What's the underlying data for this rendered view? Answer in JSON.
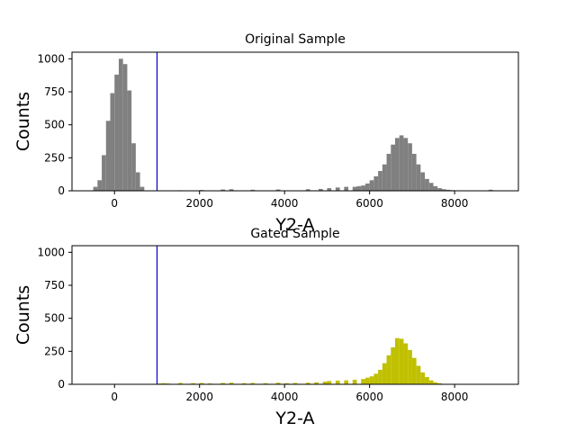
{
  "chart_data": [
    {
      "type": "histogram",
      "title": "Original Sample",
      "xlabel": "Y2-A",
      "ylabel": "Counts",
      "xlim": [
        -1000,
        9500
      ],
      "ylim": [
        0,
        1050
      ],
      "xticks": [
        0,
        2000,
        4000,
        6000,
        8000
      ],
      "yticks": [
        0,
        250,
        500,
        750,
        1000
      ],
      "bar_color": "#808080",
      "gate_line": {
        "x": 1000,
        "color": "#0000cc"
      },
      "bin_width": 100,
      "bins": [
        [
          -500,
          30
        ],
        [
          -400,
          80
        ],
        [
          -300,
          270
        ],
        [
          -200,
          530
        ],
        [
          -100,
          740
        ],
        [
          0,
          880
        ],
        [
          100,
          1000
        ],
        [
          200,
          960
        ],
        [
          300,
          760
        ],
        [
          400,
          360
        ],
        [
          500,
          140
        ],
        [
          600,
          30
        ],
        [
          1000,
          3
        ],
        [
          1500,
          4
        ],
        [
          2000,
          6
        ],
        [
          2500,
          10
        ],
        [
          2700,
          12
        ],
        [
          3200,
          8
        ],
        [
          3800,
          10
        ],
        [
          4500,
          12
        ],
        [
          4800,
          14
        ],
        [
          5000,
          20
        ],
        [
          5200,
          25
        ],
        [
          5400,
          30
        ],
        [
          5600,
          30
        ],
        [
          5700,
          35
        ],
        [
          5800,
          40
        ],
        [
          5900,
          55
        ],
        [
          6000,
          80
        ],
        [
          6100,
          110
        ],
        [
          6200,
          150
        ],
        [
          6300,
          200
        ],
        [
          6400,
          280
        ],
        [
          6500,
          350
        ],
        [
          6600,
          400
        ],
        [
          6700,
          420
        ],
        [
          6800,
          400
        ],
        [
          6900,
          360
        ],
        [
          7000,
          280
        ],
        [
          7100,
          200
        ],
        [
          7200,
          140
        ],
        [
          7300,
          90
        ],
        [
          7400,
          60
        ],
        [
          7500,
          35
        ],
        [
          7600,
          20
        ],
        [
          7700,
          12
        ],
        [
          7800,
          8
        ],
        [
          7900,
          5
        ],
        [
          8000,
          3
        ],
        [
          8800,
          8
        ]
      ]
    },
    {
      "type": "histogram",
      "title": "Gated Sample",
      "xlabel": "Y2-A",
      "ylabel": "Counts",
      "xlim": [
        -1000,
        9500
      ],
      "ylim": [
        0,
        1050
      ],
      "xticks": [
        0,
        2000,
        4000,
        6000,
        8000
      ],
      "yticks": [
        0,
        250,
        500,
        750,
        1000
      ],
      "bar_color": "#c0c000",
      "gate_line": {
        "x": 1000,
        "color": "#0000cc"
      },
      "bin_width": 100,
      "bins": [
        [
          1000,
          5
        ],
        [
          1100,
          8
        ],
        [
          1200,
          6
        ],
        [
          1500,
          10
        ],
        [
          1800,
          8
        ],
        [
          2000,
          10
        ],
        [
          2200,
          6
        ],
        [
          2500,
          10
        ],
        [
          2700,
          12
        ],
        [
          3000,
          8
        ],
        [
          3200,
          10
        ],
        [
          3500,
          8
        ],
        [
          3800,
          12
        ],
        [
          4000,
          8
        ],
        [
          4200,
          10
        ],
        [
          4500,
          12
        ],
        [
          4700,
          15
        ],
        [
          4900,
          20
        ],
        [
          5000,
          25
        ],
        [
          5200,
          28
        ],
        [
          5400,
          30
        ],
        [
          5600,
          35
        ],
        [
          5800,
          40
        ],
        [
          5900,
          50
        ],
        [
          6000,
          60
        ],
        [
          6100,
          80
        ],
        [
          6200,
          110
        ],
        [
          6300,
          160
        ],
        [
          6400,
          220
        ],
        [
          6500,
          280
        ],
        [
          6600,
          350
        ],
        [
          6700,
          345
        ],
        [
          6800,
          310
        ],
        [
          6900,
          260
        ],
        [
          7000,
          200
        ],
        [
          7100,
          140
        ],
        [
          7200,
          90
        ],
        [
          7300,
          55
        ],
        [
          7400,
          30
        ],
        [
          7500,
          15
        ],
        [
          7600,
          8
        ]
      ]
    }
  ]
}
